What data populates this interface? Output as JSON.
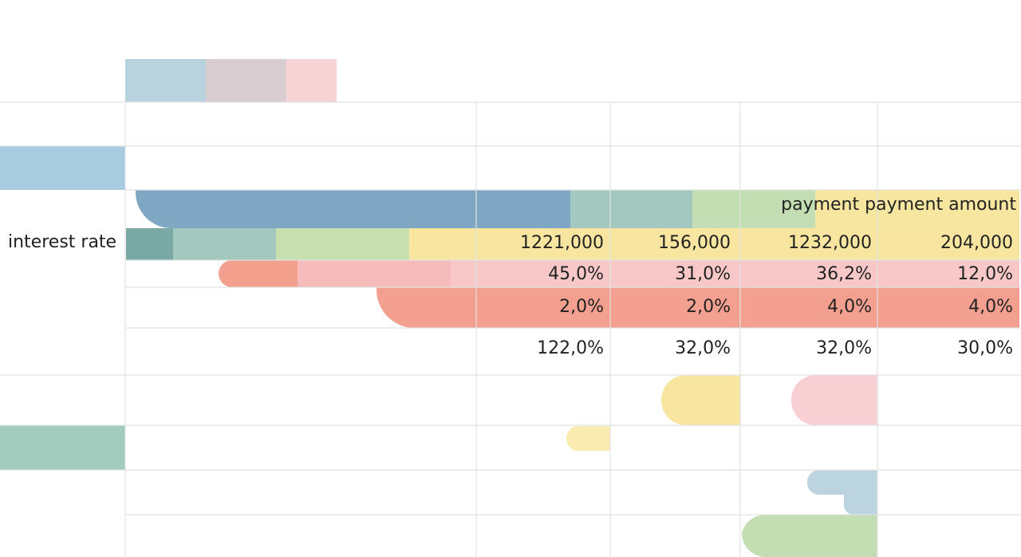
{
  "header": {
    "label": "payment payment amount"
  },
  "row_label": "interest rate",
  "table": {
    "rows": [
      [
        "1221,000",
        "156,000",
        "1232,000",
        "204,000"
      ],
      [
        "45,0%",
        "31,0%",
        "36,2%",
        "12,0%"
      ],
      [
        "2,0%",
        "2,0%",
        "4,0%",
        "4,0%"
      ],
      [
        "122,0%",
        "32,0%",
        "32,0%",
        "30,0%"
      ]
    ]
  }
}
